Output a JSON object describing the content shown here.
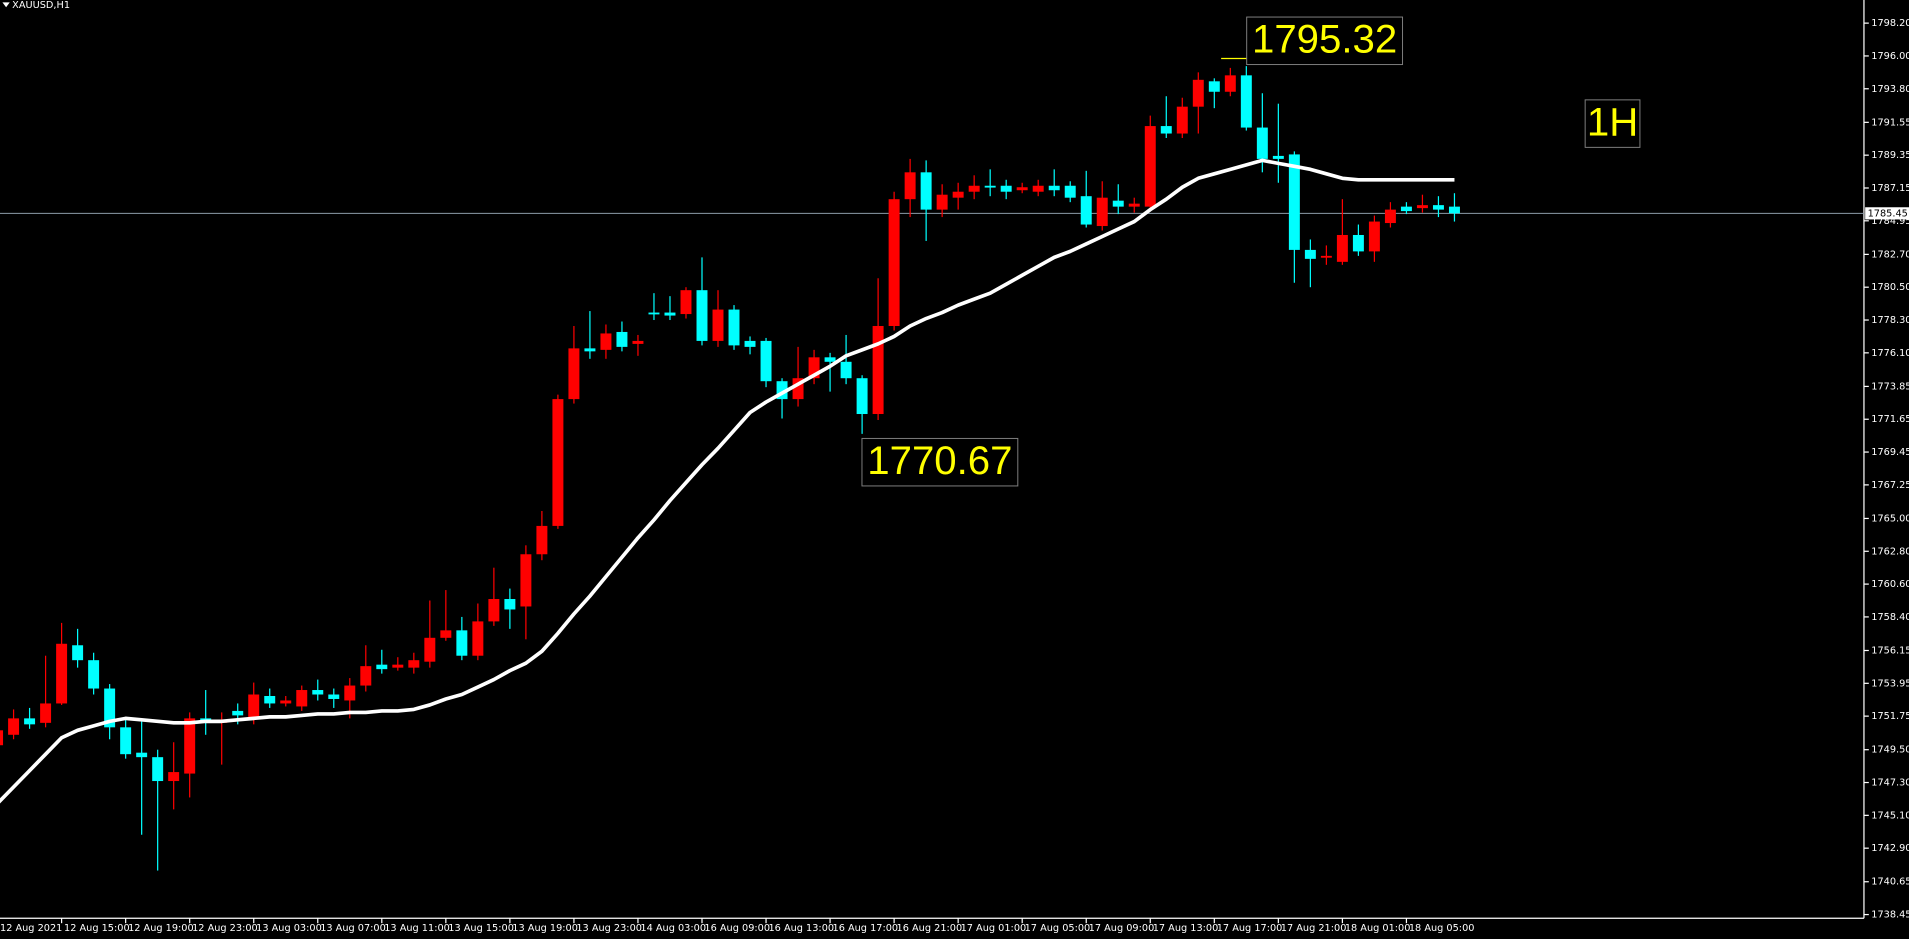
{
  "chart_data": {
    "type": "candlestick",
    "title": "XAUUSD,H1",
    "categories": [
      "12 Aug 2021",
      null,
      null,
      null,
      "12 Aug 15:00",
      null,
      null,
      null,
      "12 Aug 19:00",
      null,
      null,
      null,
      "12 Aug 23:00",
      null,
      null,
      null,
      "13 Aug 03:00",
      null,
      null,
      null,
      "13 Aug 07:00",
      null,
      null,
      null,
      "13 Aug 11:00",
      null,
      null,
      null,
      "13 Aug 15:00",
      null,
      null,
      null,
      "13 Aug 19:00",
      null,
      null,
      null,
      "13 Aug 23:00",
      null,
      null,
      null,
      "14 Aug 03:00",
      null,
      null,
      null,
      "16 Aug 09:00",
      null,
      null,
      null,
      "16 Aug 13:00",
      null,
      null,
      null,
      "16 Aug 17:00",
      null,
      null,
      null,
      "16 Aug 21:00",
      null,
      null,
      null,
      "17 Aug 01:00",
      null,
      null,
      null,
      "17 Aug 05:00",
      null,
      null,
      null,
      "17 Aug 09:00",
      null,
      null,
      null,
      "17 Aug 13:00",
      null,
      null,
      null,
      "17 Aug 17:00",
      null,
      null,
      null,
      "17 Aug 21:00",
      null,
      null,
      null,
      "18 Aug 01:00",
      null,
      null,
      null,
      "18 Aug 05:00",
      null,
      null,
      null
    ],
    "open": [
      1749.8,
      1750.5,
      1751.6,
      1751.3,
      1752.6,
      1756.5,
      1755.5,
      1753.6,
      1751.0,
      1749.3,
      1749.0,
      1747.4,
      1747.9,
      1751.6,
      1751.3,
      1752.1,
      1751.6,
      1753.1,
      1752.6,
      1752.4,
      1753.5,
      1753.2,
      1752.8,
      1753.8,
      1755.2,
      1755.0,
      1755.0,
      1755.4,
      1757.0,
      1757.5,
      1755.8,
      1758.1,
      1759.6,
      1759.1,
      1762.6,
      1764.5,
      1773.0,
      1776.4,
      1776.3,
      1777.5,
      1776.7,
      1778.8,
      1778.8,
      1778.7,
      1780.3,
      1776.9,
      1779.0,
      1776.9,
      1776.9,
      1774.2,
      1773.0,
      1774.4,
      1775.8,
      1775.5,
      1774.4,
      1772.0,
      1777.9,
      1786.4,
      1788.2,
      1785.7,
      1786.5,
      1786.9,
      1787.3,
      1787.3,
      1787.0,
      1786.9,
      1787.3,
      1787.3,
      1786.6,
      1784.6,
      1786.3,
      1785.9,
      1785.9,
      1791.3,
      1790.8,
      1792.6,
      1794.3,
      1793.6,
      1794.7,
      1791.2,
      1789.3,
      1789.4,
      1783.0,
      1782.5,
      1782.2,
      1784.0,
      1782.9,
      1784.8,
      1785.9,
      1785.8,
      1786.0,
      1785.9
    ],
    "high": [
      1751.2,
      1752.2,
      1752.3,
      1755.8,
      1758.0,
      1757.6,
      1756.0,
      1753.9,
      1751.6,
      1751.5,
      1749.5,
      1750.0,
      1752.0,
      1753.5,
      1752.0,
      1752.6,
      1754.0,
      1753.6,
      1753.1,
      1753.8,
      1754.2,
      1753.6,
      1754.3,
      1756.5,
      1756.2,
      1755.7,
      1756.0,
      1759.5,
      1760.2,
      1758.4,
      1759.3,
      1761.7,
      1760.3,
      1763.2,
      1765.5,
      1773.3,
      1777.9,
      1778.9,
      1778.0,
      1778.2,
      1777.3,
      1780.1,
      1779.9,
      1780.5,
      1782.5,
      1780.3,
      1779.3,
      1777.2,
      1777.1,
      1774.4,
      1776.5,
      1776.3,
      1776.1,
      1777.3,
      1774.6,
      1781.1,
      1786.9,
      1789.1,
      1789.0,
      1787.4,
      1787.5,
      1788.0,
      1788.4,
      1787.7,
      1787.5,
      1787.7,
      1788.4,
      1787.6,
      1788.3,
      1787.6,
      1787.4,
      1786.5,
      1792.0,
      1793.3,
      1793.2,
      1794.9,
      1794.5,
      1795.2,
      1795.32,
      1793.5,
      1792.8,
      1789.6,
      1783.7,
      1783.3,
      1786.4,
      1784.7,
      1785.3,
      1786.2,
      1786.2,
      1786.7,
      1786.6,
      1786.8
    ],
    "low": [
      1749.5,
      1750.2,
      1750.9,
      1751.0,
      1752.5,
      1755.0,
      1753.2,
      1750.2,
      1748.9,
      1743.8,
      1741.4,
      1745.5,
      1746.3,
      1750.5,
      1748.5,
      1751.2,
      1751.2,
      1752.3,
      1752.4,
      1752.1,
      1752.8,
      1752.3,
      1751.6,
      1753.4,
      1754.6,
      1754.8,
      1754.6,
      1755.0,
      1756.8,
      1755.5,
      1755.5,
      1757.8,
      1757.6,
      1756.9,
      1762.2,
      1764.3,
      1772.7,
      1775.7,
      1775.7,
      1776.2,
      1775.9,
      1778.3,
      1778.3,
      1778.4,
      1776.6,
      1776.5,
      1776.3,
      1776.0,
      1773.8,
      1771.7,
      1772.5,
      1774.0,
      1773.5,
      1774.0,
      1770.67,
      1771.6,
      1777.6,
      1785.2,
      1783.6,
      1785.2,
      1785.7,
      1786.4,
      1786.6,
      1786.4,
      1786.8,
      1786.6,
      1786.6,
      1786.2,
      1784.5,
      1784.3,
      1785.4,
      1785.5,
      1785.6,
      1790.5,
      1790.5,
      1790.8,
      1792.5,
      1793.3,
      1791.0,
      1788.2,
      1787.5,
      1780.8,
      1780.5,
      1782.0,
      1782.0,
      1782.6,
      1782.2,
      1784.5,
      1785.4,
      1785.5,
      1785.2,
      1784.9
    ],
    "close": [
      1750.8,
      1751.6,
      1751.2,
      1752.6,
      1756.6,
      1755.5,
      1753.6,
      1751.0,
      1749.2,
      1749.0,
      1747.4,
      1748.0,
      1751.6,
      1751.4,
      1751.5,
      1751.8,
      1753.2,
      1752.6,
      1752.8,
      1753.5,
      1753.2,
      1752.9,
      1753.8,
      1755.1,
      1754.9,
      1755.2,
      1755.5,
      1757.0,
      1757.5,
      1755.8,
      1758.1,
      1759.6,
      1758.9,
      1762.6,
      1764.5,
      1773.0,
      1776.4,
      1776.2,
      1777.4,
      1776.5,
      1776.9,
      1778.7,
      1778.6,
      1780.3,
      1776.9,
      1779.0,
      1776.6,
      1776.5,
      1774.2,
      1773.0,
      1774.4,
      1775.8,
      1775.5,
      1774.4,
      1772.0,
      1777.9,
      1786.4,
      1788.2,
      1785.7,
      1786.7,
      1786.9,
      1787.3,
      1787.2,
      1786.9,
      1787.2,
      1787.3,
      1787.0,
      1786.5,
      1784.7,
      1786.5,
      1785.9,
      1786.1,
      1791.3,
      1790.8,
      1792.6,
      1794.4,
      1793.6,
      1794.7,
      1791.2,
      1789.1,
      1789.1,
      1783.0,
      1782.4,
      1782.6,
      1784.0,
      1782.9,
      1784.9,
      1785.7,
      1785.6,
      1786.0,
      1785.7,
      1785.45
    ],
    "up_color": "#ff0000",
    "down_color": "#00ffff",
    "moving_average": {
      "color": "#ffffff",
      "values": [
        1745.9,
        1747.0,
        1748.1,
        1749.2,
        1750.3,
        1750.8,
        1751.1,
        1751.4,
        1751.6,
        1751.5,
        1751.4,
        1751.3,
        1751.3,
        1751.4,
        1751.4,
        1751.5,
        1751.6,
        1751.7,
        1751.7,
        1751.8,
        1751.9,
        1751.9,
        1752.0,
        1752.0,
        1752.1,
        1752.1,
        1752.2,
        1752.5,
        1752.9,
        1753.2,
        1753.7,
        1754.2,
        1754.8,
        1755.3,
        1756.1,
        1757.3,
        1758.6,
        1759.8,
        1761.1,
        1762.4,
        1763.7,
        1764.9,
        1766.2,
        1767.4,
        1768.6,
        1769.7,
        1770.9,
        1772.1,
        1772.8,
        1773.4,
        1774.0,
        1774.6,
        1775.2,
        1775.9,
        1776.3,
        1776.7,
        1777.2,
        1777.9,
        1778.4,
        1778.8,
        1779.3,
        1779.7,
        1780.1,
        1780.7,
        1781.3,
        1781.9,
        1782.5,
        1782.9,
        1783.4,
        1783.9,
        1784.4,
        1784.9,
        1785.7,
        1786.4,
        1787.2,
        1787.8,
        1788.1,
        1788.4,
        1788.7,
        1789.0,
        1788.8,
        1788.6,
        1788.4,
        1788.1,
        1787.8,
        1787.7,
        1787.7,
        1787.7,
        1787.7,
        1787.7,
        1787.7,
        1787.7
      ]
    },
    "current_price": 1785.45,
    "ylim": [
      1738.2,
      1799.75
    ],
    "yticks": [
      {
        "value": 1798.2,
        "label": "1798.20"
      },
      {
        "value": 1796,
        "label": "1796.00"
      },
      {
        "value": 1793.8,
        "label": "1793.80"
      },
      1791.55,
      1789.35,
      1787.15,
      1784.95,
      {
        "value": 1782.7,
        "label": "1782.70"
      },
      {
        "value": 1780.5,
        "label": "1780.50"
      },
      {
        "value": 1778.3,
        "label": "1778.30"
      },
      {
        "value": 1776.1,
        "label": "1776.10"
      },
      1773.85,
      1771.65,
      1769.45,
      1767.25,
      {
        "value": 1765,
        "label": "1765.00"
      },
      {
        "value": 1762.8,
        "label": "1762.80"
      },
      {
        "value": 1760.6,
        "label": "1760.60"
      },
      {
        "value": 1758.4,
        "label": "1758.40"
      },
      1756.15,
      1753.95,
      1751.75,
      {
        "value": 1749.5,
        "label": "1749.50"
      },
      {
        "value": 1747.3,
        "label": "1747.30"
      },
      {
        "value": 1745.1,
        "label": "1745.10"
      },
      {
        "value": 1742.9,
        "label": "1742.90"
      },
      1740.65,
      1738.45
    ],
    "grid": false,
    "annotations": [
      "1795.32",
      "1770.67",
      "1H"
    ]
  }
}
